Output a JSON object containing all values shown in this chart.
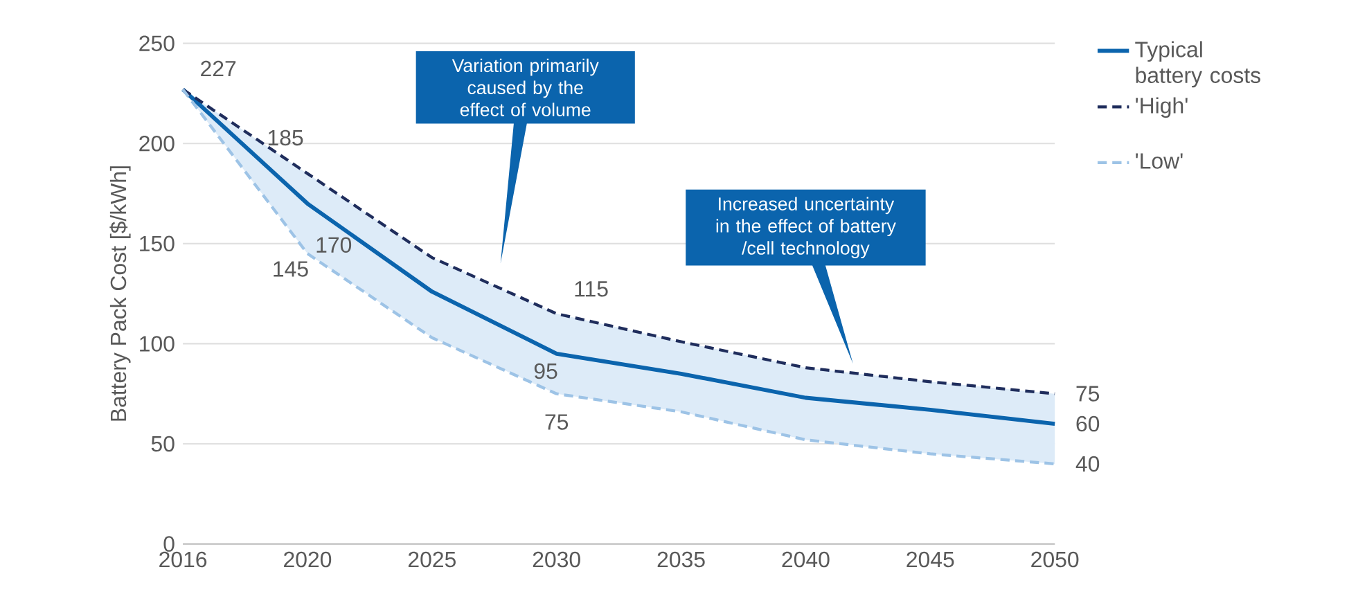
{
  "chart_data": {
    "type": "line",
    "ylabel": "Battery Pack Cost [$/kWh]",
    "categories": [
      "2016",
      "2020",
      "2025",
      "2030",
      "2035",
      "2040",
      "2045",
      "2050"
    ],
    "ylim": [
      0,
      250
    ],
    "yticks": [
      0,
      50,
      100,
      150,
      200,
      250
    ],
    "grid": "y",
    "legend": "right",
    "series": [
      {
        "name": "Typical battery costs",
        "color": "#0b64ad",
        "line_style": "solid",
        "values": [
          227,
          170,
          126,
          95,
          85,
          73,
          67,
          60
        ],
        "lower": [
          227,
          145,
          103,
          75,
          66,
          52,
          45,
          40
        ],
        "upper": [
          227,
          185,
          143,
          115,
          101,
          88,
          81,
          75
        ],
        "value_labels": [
          "227",
          "170",
          null,
          "95",
          null,
          null,
          null,
          "60"
        ]
      },
      {
        "name": "'High'",
        "color": "#1f2d5c",
        "line_style": "dashed",
        "values": [
          227,
          185,
          143,
          115,
          101,
          88,
          81,
          75
        ],
        "value_labels": [
          null,
          "185",
          null,
          "115",
          null,
          null,
          null,
          "75"
        ]
      },
      {
        "name": "'Low'",
        "color": "#9dc3e6",
        "line_style": "dashed",
        "values": [
          227,
          145,
          103,
          75,
          66,
          52,
          45,
          40
        ],
        "value_labels": [
          null,
          "145",
          null,
          "75",
          null,
          null,
          null,
          "40"
        ]
      }
    ],
    "annotations": [
      "Variation primarily caused by the effect of volume",
      "Increased uncertainty in the effect of battery /cell technology"
    ]
  }
}
